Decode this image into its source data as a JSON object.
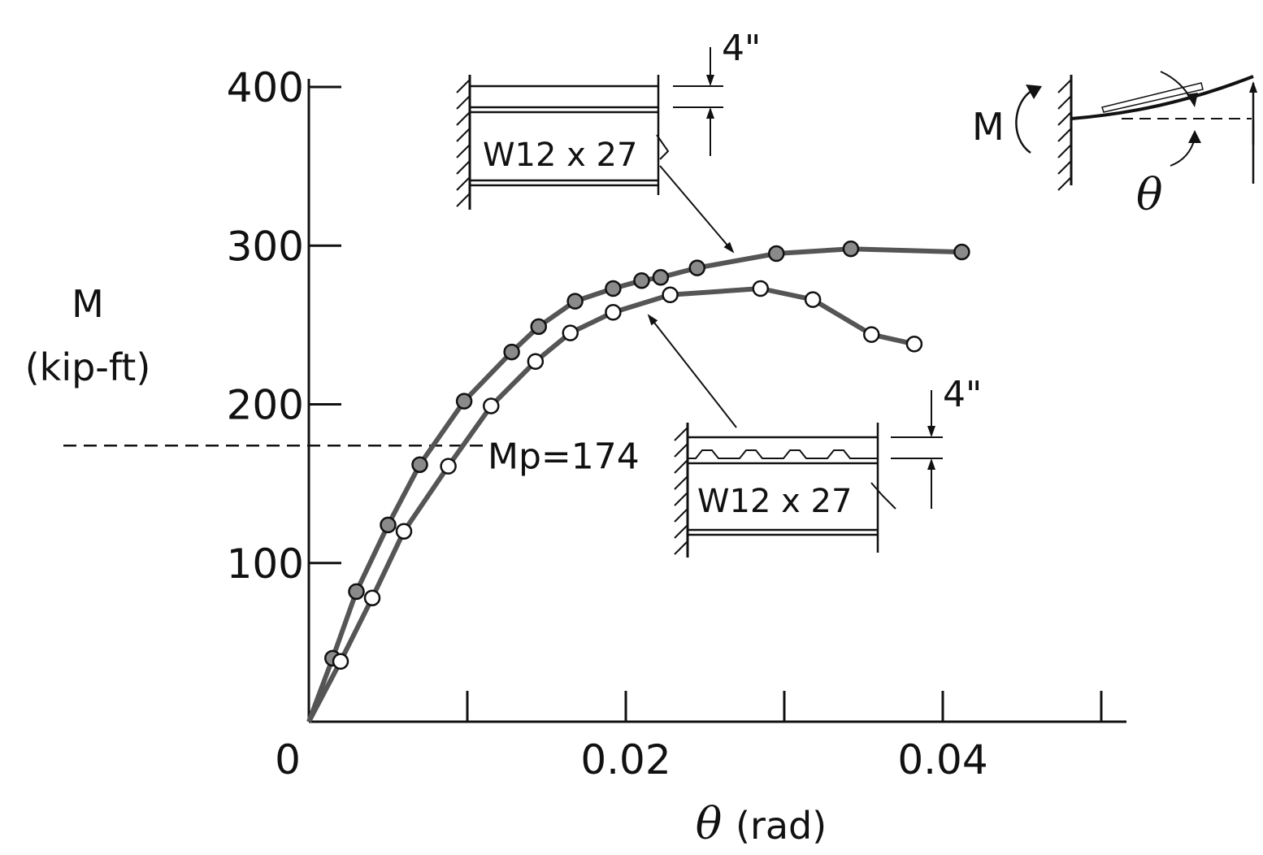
{
  "chart_data": {
    "type": "line",
    "xlabel_symbol": "θ",
    "xlabel_unit": "(rad)",
    "ylabel_symbol": "M",
    "ylabel_unit": "(kip-ft)",
    "xlim": [
      0,
      0.05
    ],
    "ylim": [
      0,
      400
    ],
    "x_ticks": [
      0,
      0.01,
      0.02,
      0.03,
      0.04,
      0.05
    ],
    "x_tick_labels": [
      {
        "value": 0,
        "label": "0"
      },
      {
        "value": 0.02,
        "label": "0.02"
      },
      {
        "value": 0.04,
        "label": "0.04"
      }
    ],
    "y_ticks": [
      100,
      200,
      300,
      400
    ],
    "y_tick_labels": [
      {
        "value": 100,
        "label": "100"
      },
      {
        "value": 200,
        "label": "200"
      },
      {
        "value": 300,
        "label": "300"
      },
      {
        "value": 400,
        "label": "400"
      }
    ],
    "grid": false,
    "reference_line": {
      "value": 174,
      "label": "Mp=174"
    },
    "series": [
      {
        "marker": "filled",
        "label": "W12 x 27",
        "color": "#555555",
        "x": [
          0,
          0.0015,
          0.003,
          0.005,
          0.007,
          0.0098,
          0.0128,
          0.0145,
          0.0168,
          0.0192,
          0.021,
          0.0222,
          0.0245,
          0.0295,
          0.0342,
          0.0412
        ],
        "y": [
          0,
          40,
          82,
          124,
          162,
          202,
          233,
          249,
          265,
          273,
          278,
          280,
          286,
          295,
          298,
          296
        ]
      },
      {
        "marker": "open",
        "label": "W12 x 27",
        "color": "#555555",
        "x": [
          0,
          0.002,
          0.004,
          0.006,
          0.0088,
          0.0115,
          0.0143,
          0.0165,
          0.0192,
          0.0228,
          0.0285,
          0.0318,
          0.0355,
          0.0382
        ],
        "y": [
          0,
          38,
          78,
          120,
          161,
          199,
          227,
          245,
          258,
          269,
          273,
          266,
          244,
          238
        ]
      }
    ]
  }
}
